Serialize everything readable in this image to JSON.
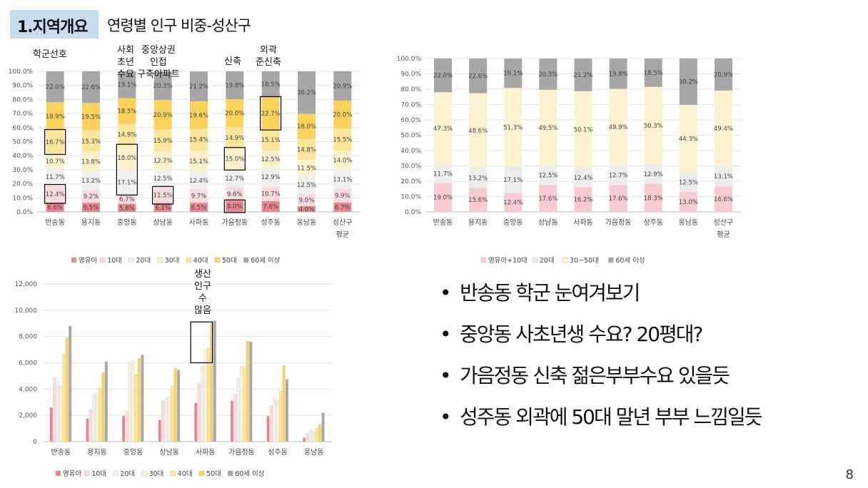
{
  "header": {
    "number": "1.지역개요",
    "title": "연령별 인구 비중-성산구"
  },
  "annotations": [
    {
      "id": "ann-hakgun",
      "text": "학군선호"
    },
    {
      "id": "ann-sahoe",
      "text": "사회\n초년\n수요"
    },
    {
      "id": "ann-jungang",
      "text": "중앙상권\n인접\n구축아파트"
    },
    {
      "id": "ann-sinchuk",
      "text": "신축"
    },
    {
      "id": "ann-oegwak",
      "text": "외곽\n준신축"
    },
    {
      "id": "ann-saengsan",
      "text": "생산\n인구\n수\n많음"
    }
  ],
  "bullets": [
    "반송동 학군 눈여겨보기",
    "중앙동 사초년생 수요? 20평대?",
    "가음정동 신축 젊은부부수요 있을듯",
    "성주동 외곽에 50대 말년 부부 느낌일듯"
  ],
  "page_number": "8",
  "colors": {
    "c1": "#e8868f",
    "c2": "#fadbe0",
    "c3": "#f0f0f0",
    "c4": "#fdf1cc",
    "c5": "#fbe59a",
    "c6": "#fbd35c",
    "c7": "#a6a6a6",
    "c1b": "#f8cbd3",
    "c3b": "#ececec",
    "c5b": "#fdf2cf",
    "grid": "#e4e4e4",
    "hl": "#000000"
  },
  "chart_data": [
    {
      "type": "bar",
      "stacked": true,
      "categories": [
        "반송동",
        "용지동",
        "중앙동",
        "상남동",
        "사파동",
        "가음정동",
        "성주동",
        "웅남동",
        "성산구\n평균"
      ],
      "series": [
        {
          "name": "영유아",
          "values": [
            6.6,
            6.5,
            5.8,
            6.1,
            6.5,
            8.0,
            7.6,
            4.0,
            6.7
          ]
        },
        {
          "name": "10대",
          "values": [
            12.4,
            9.2,
            6.7,
            11.5,
            9.7,
            9.6,
            10.7,
            9.0,
            9.9
          ]
        },
        {
          "name": "20대",
          "values": [
            11.7,
            13.2,
            17.1,
            12.5,
            12.4,
            12.7,
            12.9,
            12.5,
            13.1
          ]
        },
        {
          "name": "30대",
          "values": [
            10.7,
            13.8,
            18.0,
            12.7,
            15.1,
            15.0,
            12.5,
            11.5,
            14.0
          ]
        },
        {
          "name": "40대",
          "values": [
            16.7,
            15.3,
            14.9,
            15.9,
            15.4,
            14.9,
            15.1,
            14.8,
            15.5
          ]
        },
        {
          "name": "50대",
          "values": [
            19.9,
            19.5,
            18.5,
            20.9,
            19.6,
            20.0,
            22.7,
            18.0,
            20.0
          ]
        },
        {
          "name": "60세 이상",
          "values": [
            22.0,
            22.6,
            19.1,
            20.3,
            21.2,
            19.8,
            18.5,
            30.2,
            20.9
          ]
        }
      ],
      "ylim": [
        0,
        100
      ],
      "yticks": [
        "0.0%",
        "10.0%",
        "20.0%",
        "30.0%",
        "40.0%",
        "50.0%",
        "60.0%",
        "70.0%",
        "80.0%",
        "90.0%",
        "100.0%"
      ],
      "highlights": [
        {
          "cat": 0,
          "series": 1
        },
        {
          "cat": 0,
          "series": 4
        },
        {
          "cat": 2,
          "from": 2,
          "to": 3
        },
        {
          "cat": 3,
          "series": 1
        },
        {
          "cat": 5,
          "series": 0
        },
        {
          "cat": 5,
          "series": 3
        },
        {
          "cat": 6,
          "series": 5
        }
      ],
      "legend_position": "bottom"
    },
    {
      "type": "bar",
      "stacked": true,
      "categories": [
        "반송동",
        "용지동",
        "중앙동",
        "상남동",
        "사파동",
        "가음정동",
        "성주동",
        "웅남동",
        "성산구\n평균"
      ],
      "series": [
        {
          "name": "영유아+10대",
          "values": [
            19.0,
            15.6,
            12.4,
            17.6,
            16.2,
            17.6,
            18.3,
            13.0,
            16.6
          ]
        },
        {
          "name": "20대",
          "values": [
            11.7,
            13.2,
            17.1,
            12.5,
            12.4,
            12.7,
            12.9,
            12.5,
            13.1
          ]
        },
        {
          "name": "30~50대",
          "values": [
            47.3,
            48.6,
            51.3,
            49.5,
            50.1,
            49.9,
            50.3,
            44.3,
            49.4
          ]
        },
        {
          "name": "60세 이상",
          "values": [
            22.0,
            22.6,
            19.1,
            20.3,
            21.2,
            19.8,
            18.5,
            30.2,
            20.9
          ]
        }
      ],
      "ylim": [
        0,
        100
      ],
      "yticks": [
        "0.0%",
        "10.0%",
        "20.0%",
        "30.0%",
        "40.0%",
        "50.0%",
        "60.0%",
        "70.0%",
        "80.0%",
        "90.0%",
        "100.0%"
      ],
      "legend_position": "bottom"
    },
    {
      "type": "bar",
      "categories": [
        "반송동",
        "용지동",
        "중앙동",
        "상남동",
        "사파동",
        "가음정동",
        "성주동",
        "웅남동"
      ],
      "series": [
        {
          "name": "영유아",
          "values": [
            2600,
            1750,
            1950,
            1650,
            2950,
            3100,
            1950,
            300
          ]
        },
        {
          "name": "10대",
          "values": [
            4900,
            2450,
            2300,
            3100,
            4400,
            3650,
            2750,
            650
          ]
        },
        {
          "name": "20대",
          "values": [
            4600,
            3550,
            5900,
            3350,
            5700,
            4900,
            3300,
            900
          ]
        },
        {
          "name": "30대",
          "values": [
            4250,
            3700,
            6200,
            3400,
            7000,
            5750,
            3200,
            800
          ]
        },
        {
          "name": "40대",
          "values": [
            6650,
            4100,
            5100,
            4250,
            7100,
            5700,
            3850,
            1050
          ]
        },
        {
          "name": "50대",
          "values": [
            7900,
            5250,
            6350,
            5600,
            9000,
            7650,
            5800,
            1300
          ]
        },
        {
          "name": "60세 이상",
          "values": [
            8800,
            6100,
            6600,
            5450,
            9200,
            7600,
            4750,
            2200
          ]
        }
      ],
      "ylim": [
        0,
        12000
      ],
      "yticks": [
        "0",
        "2,000",
        "4,000",
        "6,000",
        "8,000",
        "10,000",
        "12,000"
      ],
      "highlights": [
        {
          "cat": 4,
          "from": 3,
          "to": 5
        }
      ],
      "legend_position": "bottom"
    }
  ]
}
